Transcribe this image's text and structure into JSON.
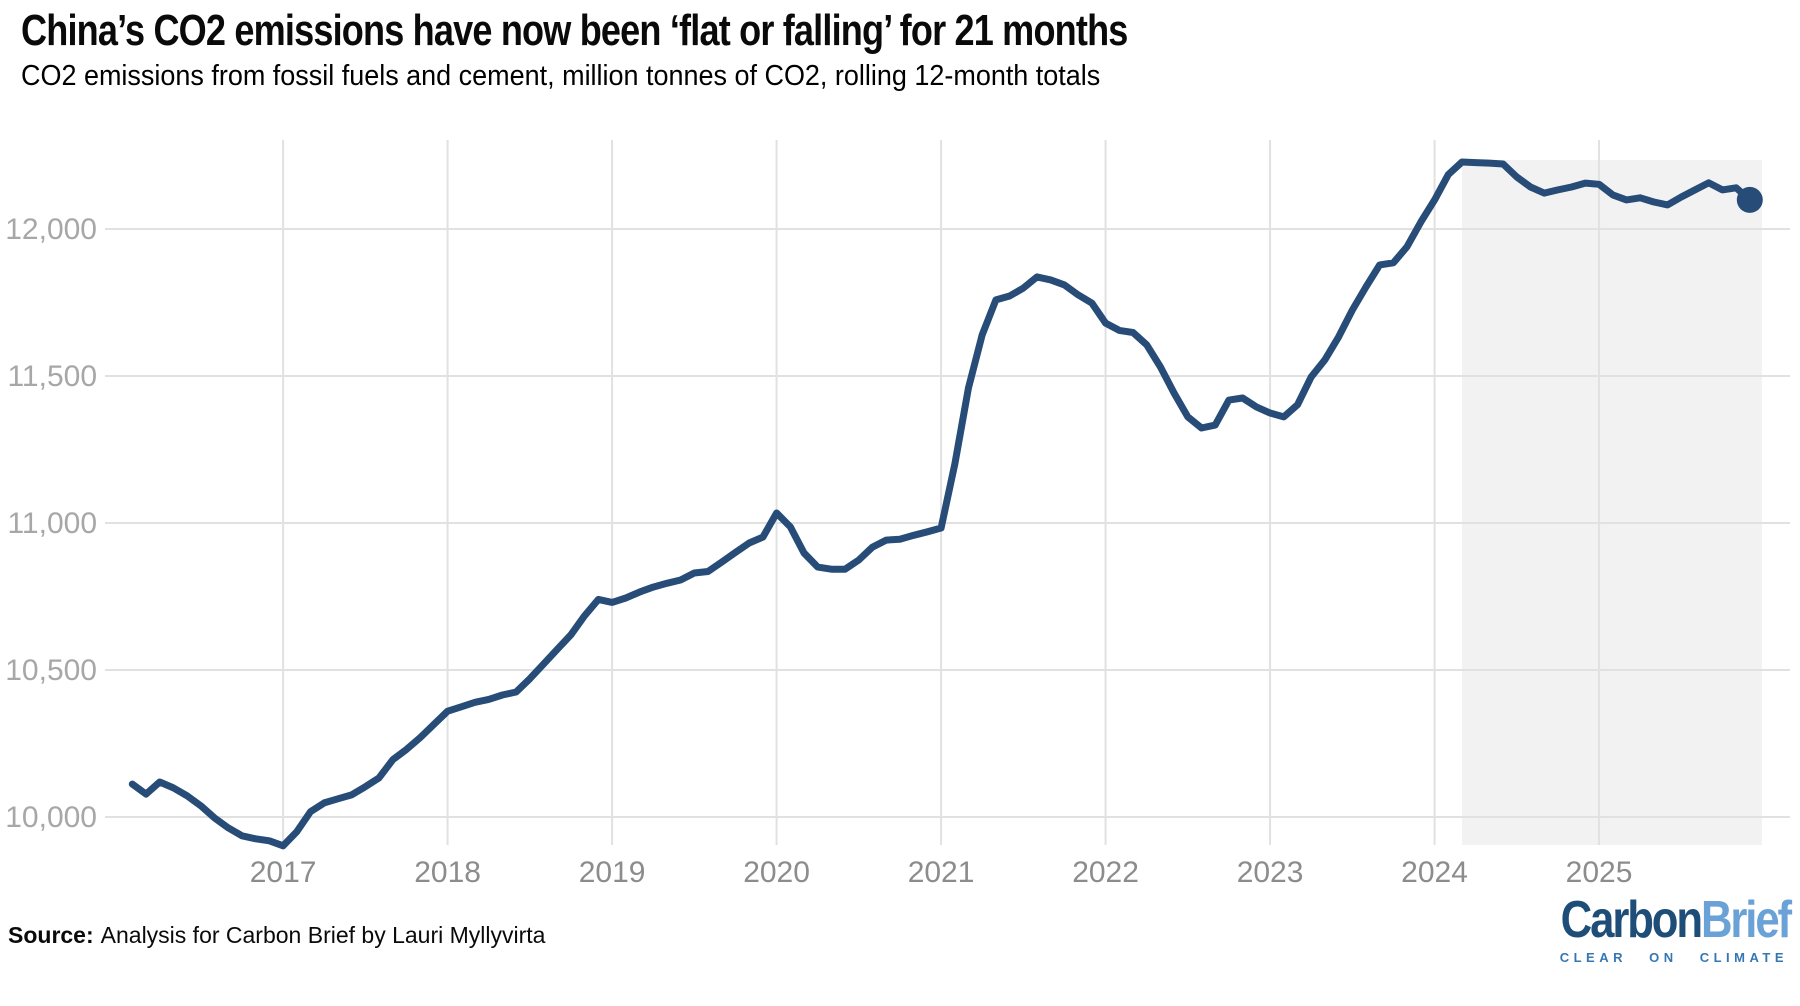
{
  "header": {
    "title": "China’s CO2 emissions have now been ‘flat or falling’ for 21 months",
    "subtitle": "CO2 emissions from fossil fuels and cement, million tonnes of CO2, rolling 12-month totals"
  },
  "chart_data": {
    "type": "line",
    "title": "China’s CO2 emissions have now been ‘flat or falling’ for 21 months",
    "subtitle": "CO2 emissions from fossil fuels and cement, million tonnes of CO2, rolling 12-month totals",
    "unit": "million tonnes of CO2, rolling 12-month total",
    "x": [
      "2016-01",
      "2016-02",
      "2016-03",
      "2016-04",
      "2016-05",
      "2016-06",
      "2016-07",
      "2016-08",
      "2016-09",
      "2016-10",
      "2016-11",
      "2016-12",
      "2017-01",
      "2017-02",
      "2017-03",
      "2017-04",
      "2017-05",
      "2017-06",
      "2017-07",
      "2017-08",
      "2017-09",
      "2017-10",
      "2017-11",
      "2017-12",
      "2018-01",
      "2018-02",
      "2018-03",
      "2018-04",
      "2018-05",
      "2018-06",
      "2018-07",
      "2018-08",
      "2018-09",
      "2018-10",
      "2018-11",
      "2018-12",
      "2019-01",
      "2019-02",
      "2019-03",
      "2019-04",
      "2019-05",
      "2019-06",
      "2019-07",
      "2019-08",
      "2019-09",
      "2019-10",
      "2019-11",
      "2019-12",
      "2020-01",
      "2020-02",
      "2020-03",
      "2020-04",
      "2020-05",
      "2020-06",
      "2020-07",
      "2020-08",
      "2020-09",
      "2020-10",
      "2020-11",
      "2020-12",
      "2021-01",
      "2021-02",
      "2021-03",
      "2021-04",
      "2021-05",
      "2021-06",
      "2021-07",
      "2021-08",
      "2021-09",
      "2021-10",
      "2021-11",
      "2021-12",
      "2022-01",
      "2022-02",
      "2022-03",
      "2022-04",
      "2022-05",
      "2022-06",
      "2022-07",
      "2022-08",
      "2022-09",
      "2022-10",
      "2022-11",
      "2022-12",
      "2023-01",
      "2023-02",
      "2023-03",
      "2023-04",
      "2023-05",
      "2023-06",
      "2023-07",
      "2023-08",
      "2023-09",
      "2023-10",
      "2023-11",
      "2023-12",
      "2024-01",
      "2024-02",
      "2024-03",
      "2024-04",
      "2024-05",
      "2024-06",
      "2024-07",
      "2024-08",
      "2024-09",
      "2024-10",
      "2024-11",
      "2024-12",
      "2025-01",
      "2025-02",
      "2025-03",
      "2025-04",
      "2025-05",
      "2025-06",
      "2025-07",
      "2025-08",
      "2025-09",
      "2025-10",
      "2025-11"
    ],
    "series": [
      {
        "name": "China CO2 emissions from fossil fuels and cement",
        "color": "#274C78",
        "values": [
          10112,
          10078,
          10119,
          10099,
          10072,
          10038,
          9997,
          9963,
          9936,
          9926,
          9919,
          9902,
          9950,
          10018,
          10048,
          10062,
          10075,
          10103,
          10133,
          10195,
          10230,
          10270,
          10315,
          10360,
          10375,
          10390,
          10400,
          10415,
          10425,
          10470,
          10520,
          10570,
          10620,
          10685,
          10740,
          10730,
          10745,
          10765,
          10782,
          10795,
          10806,
          10830,
          10835,
          10867,
          10900,
          10932,
          10952,
          11034,
          10987,
          10898,
          10850,
          10843,
          10843,
          10874,
          10918,
          10942,
          10945,
          10958,
          10970,
          10983,
          11200,
          11460,
          11640,
          11759,
          11772,
          11799,
          11837,
          11827,
          11810,
          11776,
          11748,
          11680,
          11655,
          11648,
          11606,
          11531,
          11442,
          11361,
          11323,
          11333,
          11418,
          11425,
          11395,
          11374,
          11361,
          11402,
          11497,
          11555,
          11633,
          11724,
          11803,
          11878,
          11885,
          11940,
          12024,
          12099,
          12185,
          12228,
          12226,
          12224,
          12221,
          12177,
          12143,
          12122,
          12133,
          12143,
          12156,
          12152,
          12116,
          12099,
          12106,
          12092,
          12082,
          12109,
          12133,
          12157,
          12133,
          12140,
          12099
        ]
      }
    ],
    "ylim": [
      9900,
      12320
    ],
    "yticks": {
      "values": [
        10000,
        10500,
        11000,
        11500,
        12000
      ],
      "labels": [
        "10,000",
        "10,500",
        "11,000",
        "11,500",
        "12,000"
      ]
    },
    "xticks": {
      "values": [
        "2017",
        "2018",
        "2019",
        "2020",
        "2021",
        "2022",
        "2023",
        "2024",
        "2025"
      ]
    },
    "grid": true,
    "legend": "none",
    "highlight_region": {
      "from": "2024-02",
      "to": "2025-11",
      "color": "#F2F2F2"
    },
    "end_marker": {
      "shape": "circle",
      "at": "2025-11"
    }
  },
  "footer": {
    "source_label": "Source:",
    "source_text": "Analysis for Carbon Brief by Lauri Myllyvirta",
    "logo": {
      "part1": "Carbon",
      "part2": "Brief",
      "tagline": "CLEAR ON CLIMATE"
    }
  }
}
